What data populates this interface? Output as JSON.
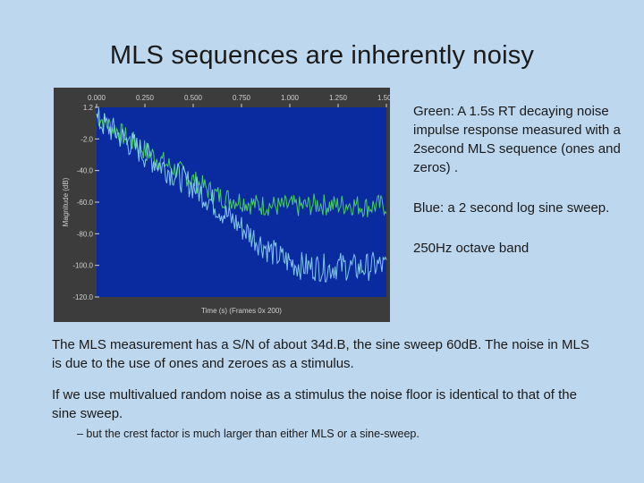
{
  "slide": {
    "title": "MLS sequences are inherently noisy"
  },
  "side_text": {
    "green": "Green: A 1.5s RT decaying noise impulse response measured with a 2second MLS sequence (ones and zeros) .",
    "blue": "Blue: a  2 second log sine sweep.",
    "band": "250Hz octave band"
  },
  "body_text": {
    "p1": "The MLS measurement has a S/N of about 34d.B, the sine sweep 60dB. The noise in MLS is due to the use of ones and zeroes as a stimulus.",
    "p2": "If we use multivalued random noise as a stimulus the noise floor is identical to that of the sine sweep.",
    "p3": "– but the crest factor is much larger than either MLS or a sine-sweep."
  },
  "figure": {
    "colors": {
      "frame": "#3c3c3c",
      "plot_bg": "#0a2aa0",
      "green_series": "#4ee05a",
      "blue_series": "#8fd8f0",
      "axis_text": "#d0d0d0"
    },
    "x_tick_labels": [
      "0.000",
      "0.250",
      "0.500",
      "0.750",
      "1.000",
      "1.250",
      "1.500"
    ],
    "y_tick_labels": [
      "1.2",
      "-2.0",
      "-40.0",
      "-60.0",
      "-80.0",
      "-100.0",
      "-120.0"
    ],
    "x_label": "Time (s) (Frames 0x 200)",
    "y_label": "Magnitude (dB)"
  },
  "chart_data": {
    "type": "line",
    "x_range": [
      0,
      1.5
    ],
    "y_range": [
      -120,
      0
    ],
    "series": [
      {
        "x": [
          0.0,
          0.05,
          0.1,
          0.15,
          0.2,
          0.25,
          0.3,
          0.35,
          0.4,
          0.45,
          0.5,
          0.55,
          0.6,
          0.65,
          0.7,
          0.75,
          0.8,
          0.85,
          0.9,
          0.95,
          1.0,
          1.05,
          1.1,
          1.15,
          1.2,
          1.25,
          1.3,
          1.35,
          1.4,
          1.45,
          1.5
        ],
        "y": [
          -5,
          -10,
          -14,
          -19,
          -23,
          -27,
          -31,
          -35,
          -39,
          -42,
          -46,
          -50,
          -54,
          -57,
          -58,
          -59,
          -61,
          -62,
          -62,
          -63,
          -62,
          -63,
          -62,
          -61,
          -62,
          -62,
          -61,
          -62,
          -63,
          -62,
          -62
        ]
      },
      {
        "x": [
          0.0,
          0.05,
          0.1,
          0.15,
          0.2,
          0.25,
          0.3,
          0.35,
          0.4,
          0.45,
          0.5,
          0.55,
          0.6,
          0.65,
          0.7,
          0.75,
          0.8,
          0.85,
          0.9,
          0.95,
          1.0,
          1.05,
          1.1,
          1.15,
          1.2,
          1.25,
          1.3,
          1.35,
          1.4,
          1.45,
          1.5
        ],
        "y": [
          -8,
          -12,
          -16,
          -21,
          -25,
          -30,
          -34,
          -38,
          -42,
          -46,
          -50,
          -55,
          -60,
          -66,
          -71,
          -76,
          -81,
          -86,
          -91,
          -95,
          -98,
          -100,
          -101,
          -101,
          -102,
          -100,
          -101,
          -102,
          -101,
          -100,
          -101
        ]
      }
    ]
  }
}
